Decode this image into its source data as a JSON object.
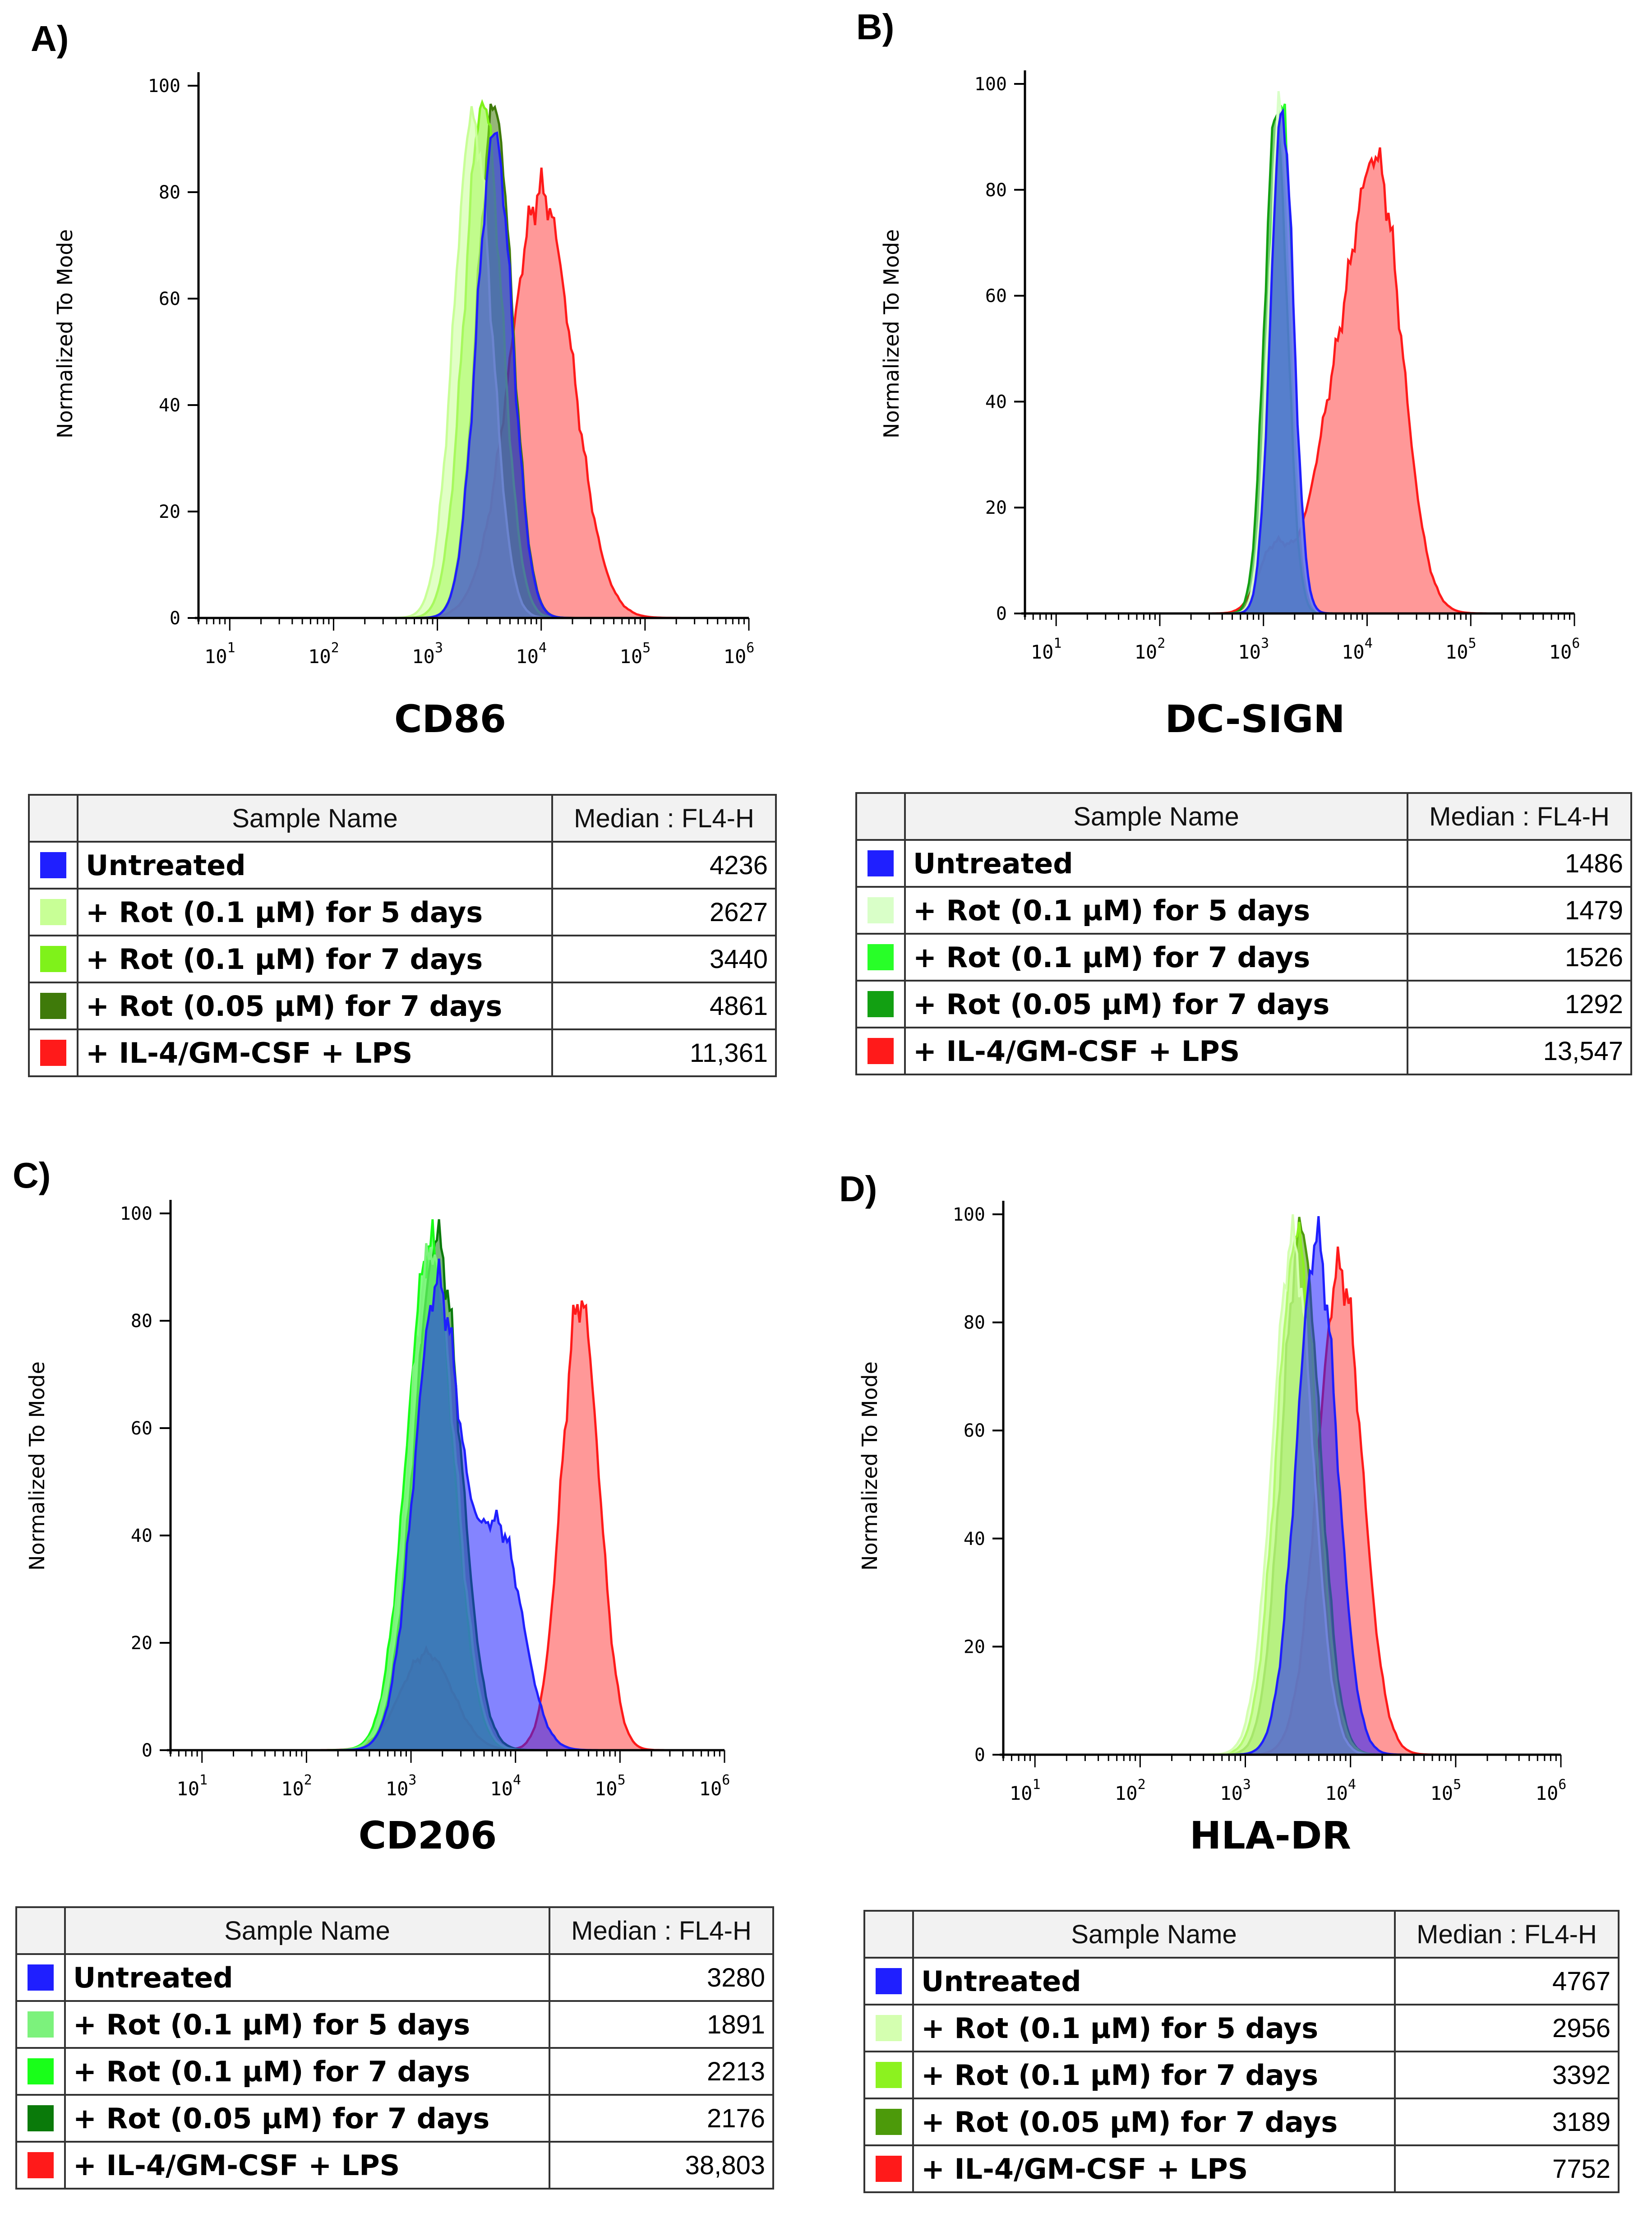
{
  "panels": [
    {
      "label": "A)",
      "marker": "CD86",
      "ylabel": "Normalized To Mode",
      "table": {
        "header_name": "Sample Name",
        "header_value": "Median : FL4-H",
        "rows": [
          {
            "name": "Untreated",
            "value": "4236",
            "color": "#1f1fff"
          },
          {
            "name": "+ Rot (0.1 µM) for 5 days",
            "value": "2627",
            "color": "#c8ff96"
          },
          {
            "name": "+ Rot (0.1 µM) for 7 days",
            "value": "3440",
            "color": "#7ff21a"
          },
          {
            "name": "+ Rot (0.05 µM) for 7 days",
            "value": "4861",
            "color": "#3f7a0a"
          },
          {
            "name": "+ IL-4/GM-CSF + LPS",
            "value": "11,361",
            "color": "#ff1a1a"
          }
        ]
      }
    },
    {
      "label": "B)",
      "marker": "DC-SIGN",
      "ylabel": "Normalized To Mode",
      "table": {
        "header_name": "Sample Name",
        "header_value": "Median : FL4-H",
        "rows": [
          {
            "name": "Untreated",
            "value": "1486",
            "color": "#1f1fff"
          },
          {
            "name": "+ Rot (0.1 µM) for 5 days",
            "value": "1479",
            "color": "#d9ffc8"
          },
          {
            "name": "+ Rot (0.1 µM) for 7 days",
            "value": "1526",
            "color": "#28ff28"
          },
          {
            "name": "+ Rot (0.05 µM) for 7 days",
            "value": "1292",
            "color": "#12a012"
          },
          {
            "name": "+ IL-4/GM-CSF + LPS",
            "value": "13,547",
            "color": "#ff1a1a"
          }
        ]
      }
    },
    {
      "label": "C)",
      "marker": "CD206",
      "ylabel": "Normalized To Mode",
      "table": {
        "header_name": "Sample Name",
        "header_value": "Median : FL4-H",
        "rows": [
          {
            "name": "Untreated",
            "value": "3280",
            "color": "#1f1fff"
          },
          {
            "name": "+ Rot (0.1 µM) for 5 days",
            "value": "1891",
            "color": "#7cf27c"
          },
          {
            "name": "+ Rot (0.1 µM) for 7 days",
            "value": "2213",
            "color": "#19ff19"
          },
          {
            "name": "+ Rot (0.05 µM) for 7 days",
            "value": "2176",
            "color": "#0a7a0a"
          },
          {
            "name": "+ IL-4/GM-CSF + LPS",
            "value": "38,803",
            "color": "#ff1a1a"
          }
        ]
      }
    },
    {
      "label": "D)",
      "marker": "HLA-DR",
      "ylabel": "Normalized To Mode",
      "table": {
        "header_name": "Sample Name",
        "header_value": "Median : FL4-H",
        "rows": [
          {
            "name": "Untreated",
            "value": "4767",
            "color": "#1f1fff"
          },
          {
            "name": "+ Rot (0.1 µM) for 5 days",
            "value": "2956",
            "color": "#d4ffb0"
          },
          {
            "name": "+ Rot (0.1 µM) for 7 days",
            "value": "3392",
            "color": "#8cf21f"
          },
          {
            "name": "+ Rot (0.05 µM) for 7 days",
            "value": "3189",
            "color": "#4c9a0a"
          },
          {
            "name": "+ IL-4/GM-CSF + LPS",
            "value": "7752",
            "color": "#ff1a1a"
          }
        ]
      }
    }
  ],
  "chart_data": [
    {
      "type": "area",
      "title": "CD86",
      "xlabel": "CD86",
      "ylabel": "Normalized To Mode",
      "xscale": "log",
      "xlim": [
        5,
        1000000
      ],
      "ylim": [
        0,
        100
      ],
      "yticks": [
        0,
        20,
        40,
        60,
        80,
        100
      ],
      "xticks": [
        10,
        100,
        1000,
        10000,
        100000,
        1000000
      ],
      "xtick_labels": [
        "10^1",
        "10^2",
        "10^3",
        "10^4",
        "10^5",
        "10^6"
      ],
      "series": [
        {
          "name": "+ IL-4/GM-CSF + LPS",
          "color": "#ff1a1a",
          "peaks": [
            {
              "center": 4.0,
              "height": 80,
              "width": 0.3
            }
          ]
        },
        {
          "name": "+ Rot (0.05 µM) for 7 days",
          "color": "#3f7a0a",
          "peaks": [
            {
              "center": 3.55,
              "height": 96,
              "width": 0.17
            }
          ]
        },
        {
          "name": "+ Rot (0.1 µM) for 7 days",
          "color": "#7ff21a",
          "peaks": [
            {
              "center": 3.44,
              "height": 97,
              "width": 0.18
            }
          ]
        },
        {
          "name": "+ Rot (0.1 µM) for 5 days",
          "color": "#c8ff96",
          "peaks": [
            {
              "center": 3.34,
              "height": 94,
              "width": 0.18
            }
          ]
        },
        {
          "name": "Untreated",
          "color": "#1f1fff",
          "peaks": [
            {
              "center": 3.55,
              "height": 91,
              "width": 0.17
            }
          ]
        }
      ]
    },
    {
      "type": "area",
      "title": "DC-SIGN",
      "xlabel": "DC-SIGN",
      "ylabel": "Normalized To Mode",
      "xscale": "log",
      "xlim": [
        5,
        1000000
      ],
      "ylim": [
        0,
        100
      ],
      "yticks": [
        0,
        20,
        40,
        60,
        80,
        100
      ],
      "xticks": [
        10,
        100,
        1000,
        10000,
        100000,
        1000000
      ],
      "xtick_labels": [
        "10^1",
        "10^2",
        "10^3",
        "10^4",
        "10^5",
        "10^6"
      ],
      "series": [
        {
          "name": "+ IL-4/GM-CSF + LPS",
          "color": "#ff1a1a",
          "peaks": [
            {
              "center": 3.1,
              "height": 12,
              "width": 0.15
            },
            {
              "center": 3.65,
              "height": 30,
              "width": 0.22
            },
            {
              "center": 4.1,
              "height": 82,
              "width": 0.24
            }
          ]
        },
        {
          "name": "+ Rot (0.05 µM) for 7 days",
          "color": "#12a012",
          "peaks": [
            {
              "center": 3.12,
              "height": 94,
              "width": 0.11
            }
          ]
        },
        {
          "name": "+ Rot (0.1 µM) for 7 days",
          "color": "#28ff28",
          "peaks": [
            {
              "center": 3.17,
              "height": 96,
              "width": 0.11
            }
          ]
        },
        {
          "name": "+ Rot (0.1 µM) for 5 days",
          "color": "#d9ffc8",
          "peaks": [
            {
              "center": 3.16,
              "height": 95,
              "width": 0.11
            }
          ]
        },
        {
          "name": "Untreated",
          "color": "#1f1fff",
          "peaks": [
            {
              "center": 3.18,
              "height": 95,
              "width": 0.11
            }
          ]
        }
      ]
    },
    {
      "type": "area",
      "title": "CD206",
      "xlabel": "CD206",
      "ylabel": "Normalized To Mode",
      "xscale": "log",
      "xlim": [
        5,
        1000000
      ],
      "ylim": [
        0,
        100
      ],
      "yticks": [
        0,
        20,
        40,
        60,
        80,
        100
      ],
      "xticks": [
        10,
        100,
        1000,
        10000,
        100000,
        1000000
      ],
      "xtick_labels": [
        "10^1",
        "10^2",
        "10^3",
        "10^4",
        "10^5",
        "10^6"
      ],
      "series": [
        {
          "name": "+ IL-4/GM-CSF + LPS",
          "color": "#ff1a1a",
          "peaks": [
            {
              "center": 3.15,
              "height": 18,
              "width": 0.25
            },
            {
              "center": 4.62,
              "height": 84,
              "width": 0.18
            }
          ]
        },
        {
          "name": "+ Rot (0.05 µM) for 7 days",
          "color": "#0a7a0a",
          "peaks": [
            {
              "center": 3.25,
              "height": 95,
              "width": 0.22
            }
          ]
        },
        {
          "name": "+ Rot (0.1 µM) for 7 days",
          "color": "#19ff19",
          "peaks": [
            {
              "center": 3.18,
              "height": 94,
              "width": 0.22
            }
          ]
        },
        {
          "name": "+ Rot (0.1 µM) for 5 days",
          "color": "#7cf27c",
          "peaks": [
            {
              "center": 3.2,
              "height": 93,
              "width": 0.22
            }
          ]
        },
        {
          "name": "Untreated",
          "color": "#1f1fff",
          "peaks": [
            {
              "center": 3.25,
              "height": 86,
              "width": 0.22
            },
            {
              "center": 3.85,
              "height": 40,
              "width": 0.22
            }
          ]
        }
      ]
    },
    {
      "type": "area",
      "title": "HLA-DR",
      "xlabel": "HLA-DR",
      "ylabel": "Normalized To Mode",
      "xscale": "log",
      "xlim": [
        5,
        1000000
      ],
      "ylim": [
        0,
        100
      ],
      "yticks": [
        0,
        20,
        40,
        60,
        80,
        100
      ],
      "xticks": [
        10,
        100,
        1000,
        10000,
        100000,
        1000000
      ],
      "xtick_labels": [
        "10^1",
        "10^2",
        "10^3",
        "10^4",
        "10^5",
        "10^6"
      ],
      "series": [
        {
          "name": "+ IL-4/GM-CSF + LPS",
          "color": "#ff1a1a",
          "peaks": [
            {
              "center": 3.9,
              "height": 90,
              "width": 0.21
            }
          ]
        },
        {
          "name": "+ Rot (0.05 µM) for 7 days",
          "color": "#4c9a0a",
          "peaks": [
            {
              "center": 3.53,
              "height": 97,
              "width": 0.18
            }
          ]
        },
        {
          "name": "+ Rot (0.1 µM) for 7 days",
          "color": "#8cf21f",
          "peaks": [
            {
              "center": 3.49,
              "height": 96,
              "width": 0.19
            }
          ]
        },
        {
          "name": "+ Rot (0.1 µM) for 5 days",
          "color": "#d4ffb0",
          "peaks": [
            {
              "center": 3.45,
              "height": 95,
              "width": 0.19
            }
          ]
        },
        {
          "name": "Untreated",
          "color": "#1f1fff",
          "peaks": [
            {
              "center": 3.68,
              "height": 95,
              "width": 0.19
            }
          ]
        }
      ]
    }
  ]
}
